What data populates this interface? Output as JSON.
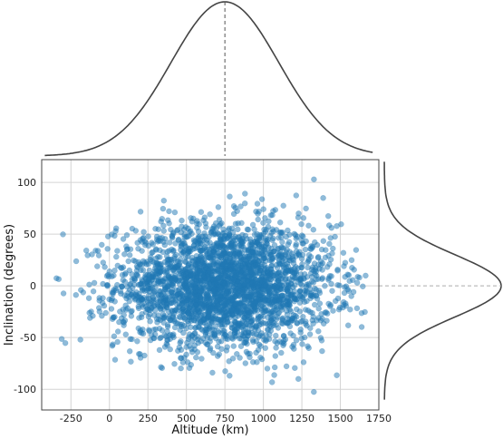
{
  "chart_data": {
    "type": "scatter",
    "title": "",
    "xlabel": "Altitude (km)",
    "ylabel": "Inclination (degrees)",
    "xlim": [
      -440,
      1750
    ],
    "ylim": [
      -120,
      122
    ],
    "xticks": [
      -250,
      0,
      250,
      500,
      750,
      1000,
      1250,
      1500,
      1750
    ],
    "yticks": [
      -100,
      -50,
      0,
      50,
      100
    ],
    "grid": true,
    "point_color": "#1f77b4",
    "point_count": 3000,
    "distribution": {
      "x": {
        "mean": 750,
        "std": 350,
        "min": -350,
        "max": 1700
      },
      "y": {
        "mean": 0,
        "std": 30,
        "min": -108,
        "max": 112
      }
    },
    "marginal_x": {
      "type": "kde",
      "peak_x": 750,
      "line_color": "#444444"
    },
    "marginal_y": {
      "type": "kde",
      "peak_y": 0,
      "line_color": "#444444"
    }
  }
}
